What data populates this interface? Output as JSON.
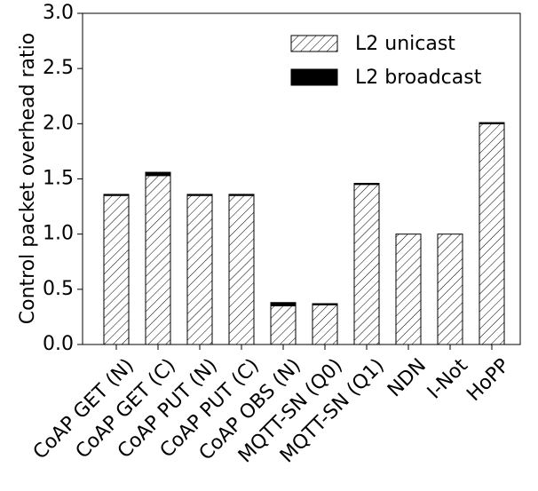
{
  "chart_data": {
    "type": "bar",
    "stacked": true,
    "y_label": "Control packet overhead ratio",
    "categories": [
      "CoAP GET (N)",
      "CoAP GET (C)",
      "CoAP PUT (N)",
      "CoAP PUT (C)",
      "CoAP OBS (N)",
      "MQTT-SN (Q0)",
      "MQTT-SN (Q1)",
      "NDN",
      "I-Not",
      "HoPP"
    ],
    "series": [
      {
        "name": "L2 unicast",
        "color": "#000000",
        "hatch": true,
        "values": [
          1.35,
          1.53,
          1.35,
          1.35,
          0.35,
          0.36,
          1.45,
          1.0,
          1.0,
          2.0
        ]
      },
      {
        "name": "L2 broadcast",
        "color": "#000000",
        "hatch": false,
        "values": [
          0.01,
          0.03,
          0.01,
          0.01,
          0.03,
          0.01,
          0.01,
          0,
          0,
          0.01
        ]
      }
    ],
    "ylim": [
      0,
      3.0
    ],
    "yticks": [
      {
        "value": 0,
        "label": "0.0"
      },
      {
        "value": 0.5,
        "label": "0.5"
      },
      {
        "value": 1.0,
        "label": "1.0"
      },
      {
        "value": 1.5,
        "label": "1.5"
      },
      {
        "value": 2.0,
        "label": "2.0"
      },
      {
        "value": 2.5,
        "label": "2.5"
      },
      {
        "value": 3.0,
        "label": "3.0"
      }
    ],
    "legend": "upper right"
  }
}
